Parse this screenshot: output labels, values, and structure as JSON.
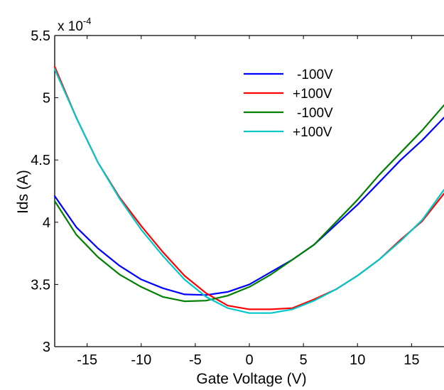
{
  "chart_data": {
    "type": "line",
    "title": "",
    "xlabel": "Gate Voltage (V)",
    "ylabel": "Ids (A)",
    "y_multiplier_base": "x 10",
    "y_multiplier_exp": "-4",
    "xlim": [
      -18,
      18
    ],
    "ylim": [
      3.0,
      5.5
    ],
    "xticks": [
      -15,
      -10,
      -5,
      0,
      5,
      10,
      15
    ],
    "xtick_labels": [
      "-15",
      "-10",
      "-5",
      "0",
      "5",
      "10",
      "15"
    ],
    "yticks": [
      3.0,
      3.5,
      4.0,
      4.5,
      5.0,
      5.5
    ],
    "ytick_labels": [
      "3",
      "3.5",
      "4",
      "4.5",
      "5",
      "5.5"
    ],
    "grid": false,
    "legend_position": "top-right",
    "series": [
      {
        "name": "-100V",
        "color": "#0000ff",
        "x": [
          -18,
          -16,
          -14,
          -12,
          -10,
          -8,
          -6,
          -4,
          -2,
          0,
          2,
          4,
          6,
          8,
          10,
          12,
          14,
          16,
          18
        ],
        "y": [
          4.21,
          3.96,
          3.79,
          3.65,
          3.54,
          3.47,
          3.42,
          3.415,
          3.44,
          3.5,
          3.6,
          3.7,
          3.82,
          3.98,
          4.14,
          4.32,
          4.5,
          4.66,
          4.84
        ]
      },
      {
        "name": "+100V",
        "color": "#ff0000",
        "x": [
          -18,
          -16,
          -14,
          -12,
          -10,
          -8,
          -6,
          -4,
          -2,
          0,
          2,
          4,
          6,
          8,
          10,
          12,
          14,
          16,
          18
        ],
        "y": [
          5.25,
          4.84,
          4.48,
          4.2,
          3.97,
          3.76,
          3.57,
          3.43,
          3.33,
          3.3,
          3.3,
          3.31,
          3.38,
          3.46,
          3.57,
          3.7,
          3.86,
          4.01,
          4.23
        ]
      },
      {
        "name": "-100V",
        "color": "#008000",
        "x": [
          -18,
          -16,
          -14,
          -12,
          -10,
          -8,
          -6,
          -4,
          -2,
          0,
          2,
          4,
          6,
          8,
          10,
          12,
          14,
          16,
          18
        ],
        "y": [
          4.17,
          3.9,
          3.72,
          3.58,
          3.48,
          3.4,
          3.365,
          3.37,
          3.41,
          3.48,
          3.58,
          3.7,
          3.82,
          4.0,
          4.18,
          4.38,
          4.56,
          4.74,
          4.94
        ]
      },
      {
        "name": "+100V",
        "color": "#00c8c8",
        "x": [
          -18,
          -16,
          -14,
          -12,
          -10,
          -8,
          -6,
          -4,
          -2,
          0,
          2,
          4,
          6,
          8,
          10,
          12,
          14,
          16,
          18
        ],
        "y": [
          5.23,
          4.84,
          4.48,
          4.19,
          3.94,
          3.73,
          3.54,
          3.4,
          3.31,
          3.27,
          3.27,
          3.3,
          3.37,
          3.46,
          3.57,
          3.7,
          3.85,
          4.02,
          4.26
        ]
      }
    ]
  }
}
